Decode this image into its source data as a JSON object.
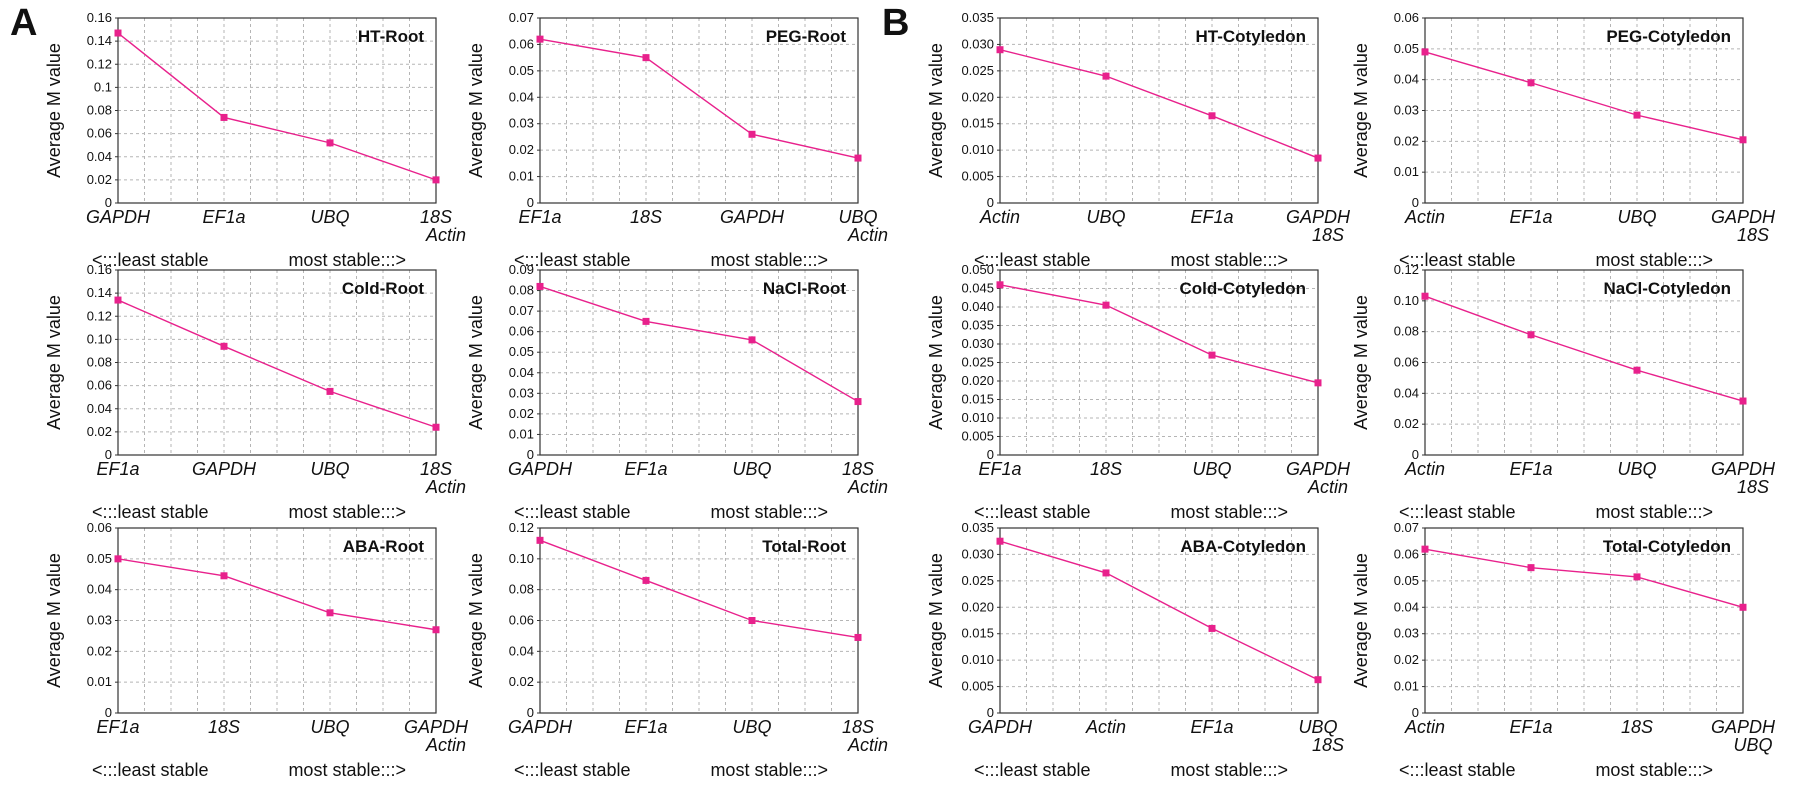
{
  "panel_labels": [
    "A",
    "B"
  ],
  "series_color": "#e8218c",
  "chart_data": [
    {
      "type": "line",
      "panel": "A",
      "title": "HT-Root",
      "ylabel": "Average M value",
      "categories": [
        "GAPDH",
        "EF1a",
        "UBQ",
        "18S\nActin"
      ],
      "values": [
        0.147,
        0.074,
        0.052,
        0.02
      ],
      "ylim": [
        0,
        0.16
      ],
      "yticks": [
        "0",
        "0.02",
        "0.04",
        "0.06",
        "0.08",
        "0.1",
        "0.12",
        "0.14",
        "0.16"
      ],
      "footer_left": "<:::least stable",
      "footer_right": "most stable:::>",
      "grid": true
    },
    {
      "type": "line",
      "panel": "A",
      "title": "PEG-Root",
      "ylabel": "Average M value",
      "categories": [
        "EF1a",
        "18S",
        "GAPDH",
        "UBQ\nActin"
      ],
      "values": [
        0.062,
        0.055,
        0.026,
        0.017
      ],
      "ylim": [
        0,
        0.07
      ],
      "yticks": [
        "0",
        "0.01",
        "0.02",
        "0.03",
        "0.04",
        "0.05",
        "0.06",
        "0.07"
      ],
      "footer_left": "<:::least stable",
      "footer_right": "most stable:::>",
      "grid": true
    },
    {
      "type": "line",
      "panel": "B",
      "title": "HT-Cotyledon",
      "ylabel": "Average M value",
      "categories": [
        "Actin",
        "UBQ",
        "EF1a",
        "GAPDH\n18S"
      ],
      "values": [
        0.029,
        0.024,
        0.0165,
        0.0085
      ],
      "ylim": [
        0,
        0.035
      ],
      "yticks": [
        "0",
        "0.005",
        "0.010",
        "0.015",
        "0.020",
        "0.025",
        "0.030",
        "0.035"
      ],
      "footer_left": "<:::least stable",
      "footer_right": "most stable:::>",
      "grid": true
    },
    {
      "type": "line",
      "panel": "B",
      "title": "PEG-Cotyledon",
      "ylabel": "Average M value",
      "categories": [
        "Actin",
        "EF1a",
        "UBQ",
        "GAPDH\n18S"
      ],
      "values": [
        0.049,
        0.039,
        0.0285,
        0.0205
      ],
      "ylim": [
        0,
        0.06
      ],
      "yticks": [
        "0",
        "0.01",
        "0.02",
        "0.03",
        "0.04",
        "0.05",
        "0.06"
      ],
      "footer_left": "<:::least stable",
      "footer_right": "most stable:::>",
      "grid": true
    },
    {
      "type": "line",
      "panel": "A",
      "title": "Cold-Root",
      "ylabel": "Average M value",
      "categories": [
        "EF1a",
        "GAPDH",
        "UBQ",
        "18S\nActin"
      ],
      "values": [
        0.134,
        0.094,
        0.055,
        0.024
      ],
      "ylim": [
        0,
        0.16
      ],
      "yticks": [
        "0",
        "0.02",
        "0.04",
        "0.06",
        "0.08",
        "0.10",
        "0.12",
        "0.14",
        "0.16"
      ],
      "footer_left": "<:::least stable",
      "footer_right": "most stable:::>",
      "grid": true
    },
    {
      "type": "line",
      "panel": "A",
      "title": "NaCl-Root",
      "ylabel": "Average M value",
      "categories": [
        "GAPDH",
        "EF1a",
        "UBQ",
        "18S\nActin"
      ],
      "values": [
        0.082,
        0.065,
        0.056,
        0.026
      ],
      "ylim": [
        0,
        0.09
      ],
      "yticks": [
        "0",
        "0.01",
        "0.02",
        "0.03",
        "0.04",
        "0.05",
        "0.06",
        "0.07",
        "0.08",
        "0.09"
      ],
      "footer_left": "<:::least stable",
      "footer_right": "most stable:::>",
      "grid": true
    },
    {
      "type": "line",
      "panel": "B",
      "title": "Cold-Cotyledon",
      "ylabel": "Average M value",
      "categories": [
        "EF1a",
        "18S",
        "UBQ",
        "GAPDH\nActin"
      ],
      "values": [
        0.046,
        0.0405,
        0.027,
        0.0195
      ],
      "ylim": [
        0,
        0.05
      ],
      "yticks": [
        "0",
        "0.005",
        "0.010",
        "0.015",
        "0.020",
        "0.025",
        "0.030",
        "0.035",
        "0.040",
        "0.045",
        "0.050"
      ],
      "footer_left": "<:::least stable",
      "footer_right": "most stable:::>",
      "grid": true
    },
    {
      "type": "line",
      "panel": "B",
      "title": "NaCl-Cotyledon",
      "ylabel": "Average M value",
      "categories": [
        "Actin",
        "EF1a",
        "UBQ",
        "GAPDH\n18S"
      ],
      "values": [
        0.103,
        0.078,
        0.055,
        0.035
      ],
      "ylim": [
        0,
        0.12
      ],
      "yticks": [
        "0",
        "0.02",
        "0.04",
        "0.06",
        "0.08",
        "0.10",
        "0.12"
      ],
      "footer_left": "<:::least stable",
      "footer_right": "most stable:::>",
      "grid": true
    },
    {
      "type": "line",
      "panel": "A",
      "title": "ABA-Root",
      "ylabel": "Average M value",
      "categories": [
        "EF1a",
        "18S",
        "UBQ",
        "GAPDH\nActin"
      ],
      "values": [
        0.05,
        0.0445,
        0.0325,
        0.027
      ],
      "ylim": [
        0,
        0.06
      ],
      "yticks": [
        "0",
        "0.01",
        "0.02",
        "0.03",
        "0.04",
        "0.05",
        "0.06"
      ],
      "footer_left": "<:::least stable",
      "footer_right": "most stable:::>",
      "grid": true
    },
    {
      "type": "line",
      "panel": "A",
      "title": "Total-Root",
      "ylabel": "Average M value",
      "categories": [
        "GAPDH",
        "EF1a",
        "UBQ",
        "18S\nActin"
      ],
      "values": [
        0.112,
        0.086,
        0.06,
        0.049
      ],
      "ylim": [
        0,
        0.12
      ],
      "yticks": [
        "0",
        "0.02",
        "0.04",
        "0.06",
        "0.08",
        "0.10",
        "0.12"
      ],
      "footer_left": "<:::least stable",
      "footer_right": "most stable:::>",
      "grid": true
    },
    {
      "type": "line",
      "panel": "B",
      "title": "ABA-Cotyledon",
      "ylabel": "Average M value",
      "categories": [
        "GAPDH",
        "Actin",
        "EF1a",
        "UBQ\n18S"
      ],
      "values": [
        0.0325,
        0.0265,
        0.016,
        0.0063
      ],
      "ylim": [
        0,
        0.035
      ],
      "yticks": [
        "0",
        "0.005",
        "0.010",
        "0.015",
        "0.020",
        "0.025",
        "0.030",
        "0.035"
      ],
      "footer_left": "<:::least stable",
      "footer_right": "most stable:::>",
      "grid": true
    },
    {
      "type": "line",
      "panel": "B",
      "title": "Total-Cotyledon",
      "ylabel": "Average M value",
      "categories": [
        "Actin",
        "EF1a",
        "18S",
        "GAPDH\nUBQ"
      ],
      "values": [
        0.062,
        0.055,
        0.0515,
        0.04
      ],
      "ylim": [
        0,
        0.07
      ],
      "yticks": [
        "0",
        "0.01",
        "0.02",
        "0.03",
        "0.04",
        "0.05",
        "0.06",
        "0.07"
      ],
      "footer_left": "<:::least stable",
      "footer_right": "most stable:::>",
      "grid": true
    }
  ]
}
